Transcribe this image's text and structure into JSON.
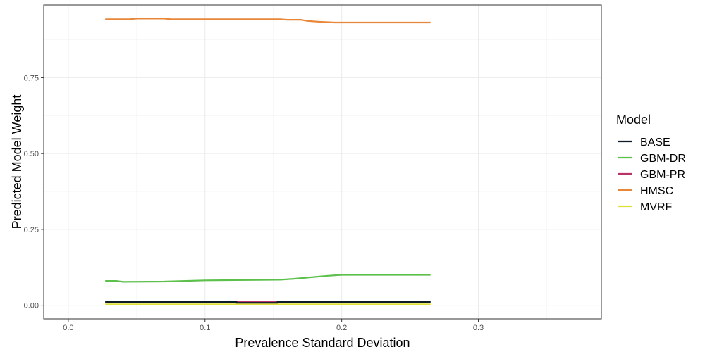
{
  "chart_data": {
    "type": "line",
    "title": "",
    "xlabel": "Prevalence Standard Deviation",
    "ylabel": "Predicted Model Weight",
    "xlim": [
      -0.018,
      0.39
    ],
    "ylim": [
      -0.045,
      0.99
    ],
    "x_ticks": [
      0.0,
      0.1,
      0.2,
      0.3
    ],
    "x_tick_labels": [
      "0.0",
      "0.1",
      "0.2",
      "0.3"
    ],
    "y_ticks": [
      0.0,
      0.25,
      0.5,
      0.75
    ],
    "y_tick_labels": [
      "0.00",
      "0.25",
      "0.50",
      "0.75"
    ],
    "grid": true,
    "legend": {
      "title": "Model",
      "position": "right"
    },
    "series": [
      {
        "name": "BASE",
        "color": "#0d1b2a",
        "x": [
          0.027,
          0.123,
          0.123,
          0.153,
          0.153,
          0.265
        ],
        "y": [
          0.011,
          0.011,
          0.008,
          0.008,
          0.011,
          0.011
        ]
      },
      {
        "name": "GBM-DR",
        "color": "#5cc04b",
        "x": [
          0.027,
          0.035,
          0.04,
          0.07,
          0.1,
          0.155,
          0.165,
          0.18,
          0.19,
          0.2,
          0.265
        ],
        "y": [
          0.08,
          0.08,
          0.077,
          0.078,
          0.082,
          0.084,
          0.087,
          0.093,
          0.097,
          0.1,
          0.1
        ]
      },
      {
        "name": "GBM-PR",
        "color": "#b8336a",
        "x": [
          0.027,
          0.265
        ],
        "y": [
          0.012,
          0.012
        ]
      },
      {
        "name": "HMSC",
        "color": "#e8873a",
        "x": [
          0.027,
          0.045,
          0.05,
          0.07,
          0.075,
          0.155,
          0.16,
          0.17,
          0.175,
          0.185,
          0.195,
          0.265
        ],
        "y": [
          0.943,
          0.943,
          0.945,
          0.945,
          0.943,
          0.943,
          0.941,
          0.941,
          0.937,
          0.934,
          0.932,
          0.932
        ]
      },
      {
        "name": "MVRF",
        "color": "#e0e03a",
        "x": [
          0.027,
          0.265
        ],
        "y": [
          0.003,
          0.003
        ]
      }
    ]
  }
}
